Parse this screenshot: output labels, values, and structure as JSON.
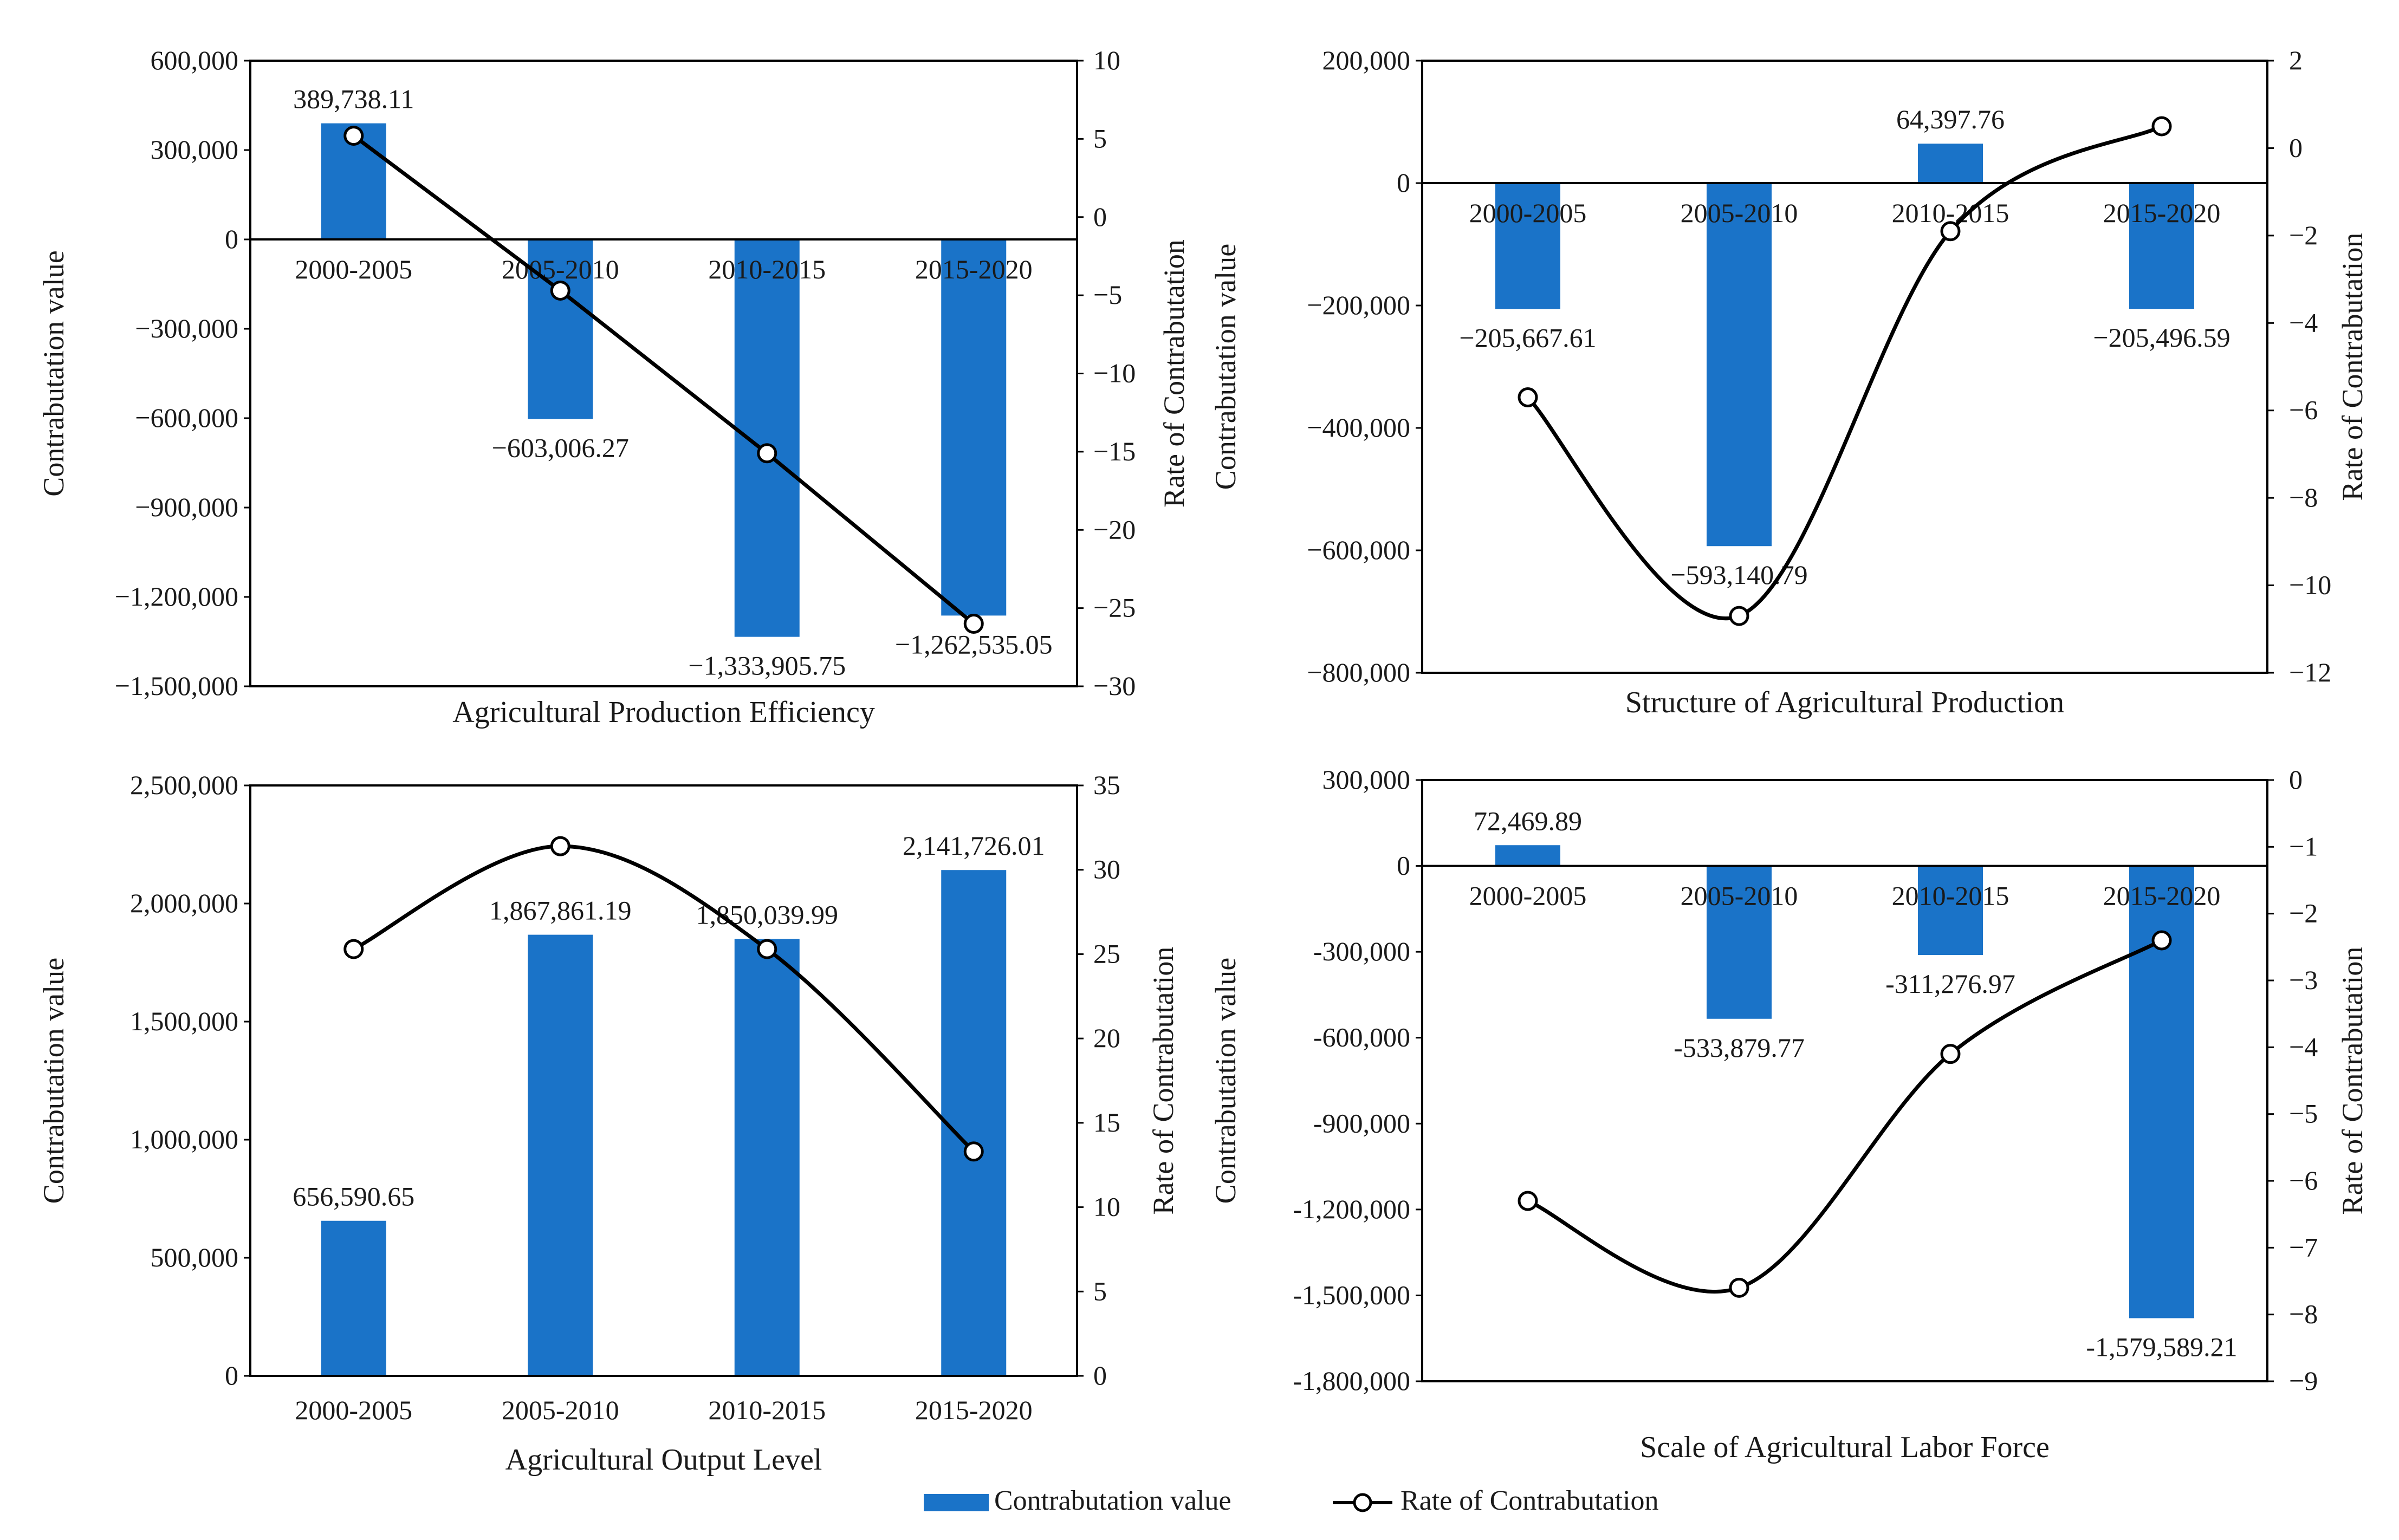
{
  "colors": {
    "bar": "#1a73c8",
    "line": "#000000",
    "frame": "#000000"
  },
  "legend": {
    "bar_label": "Contrabutation value",
    "line_label": "Rate of Contrabutation"
  },
  "chart_data": [
    {
      "type": "bar+line",
      "title": "Agricultural Production Efficiency",
      "categories": [
        "2000-2005",
        "2005-2010",
        "2010-2015",
        "2015-2020"
      ],
      "bar_series": {
        "name": "Contrabutation value",
        "values": [
          389738.11,
          -603006.27,
          -1333905.75,
          -1262535.05
        ]
      },
      "value_labels": [
        "389,738.11",
        "−603,006.27",
        "−1,333,905.75",
        "−1,262,535.05"
      ],
      "line_series": {
        "name": "Rate of Contrabutation",
        "values": [
          5.2,
          -4.7,
          -15.1,
          -26.0
        ]
      },
      "ylabel_left": "Contrabutation  value",
      "ylabel_right": "Rate  of  Contrabutation",
      "ylim_left": [
        -1500000,
        600000
      ],
      "ylim_right": [
        -30,
        10
      ],
      "left_ticks": [
        {
          "value": 600000,
          "label": "600,000"
        },
        {
          "value": 300000,
          "label": "300,000"
        },
        {
          "value": 0,
          "label": "0"
        },
        {
          "value": -300000,
          "label": "−300,000"
        },
        {
          "value": -600000,
          "label": "−600,000"
        },
        {
          "value": -900000,
          "label": "−900,000"
        },
        {
          "value": -1200000,
          "label": "−1,200,000"
        },
        {
          "value": -1500000,
          "label": "−1,500,000"
        }
      ],
      "right_ticks": [
        {
          "value": 10,
          "label": "10"
        },
        {
          "value": 5,
          "label": "5"
        },
        {
          "value": 0,
          "label": "0"
        },
        {
          "value": -5,
          "label": "−5"
        },
        {
          "value": -10,
          "label": "−10"
        },
        {
          "value": -15,
          "label": "−15"
        },
        {
          "value": -20,
          "label": "−20"
        },
        {
          "value": -25,
          "label": "−25"
        },
        {
          "value": -30,
          "label": "−30"
        }
      ],
      "category_labels_at_zero": true,
      "line_style": "straight"
    },
    {
      "type": "bar+line",
      "title": "Structure of Agricultural Production",
      "categories": [
        "2000-2005",
        "2005-2010",
        "2010-2015",
        "2015-2020"
      ],
      "bar_series": {
        "name": "Contrabutation value",
        "values": [
          -205667.61,
          -593140.79,
          64397.76,
          -205496.59
        ]
      },
      "value_labels": [
        "−205,667.61",
        "−593,140.79",
        "64,397.76",
        "−205,496.59"
      ],
      "line_series": {
        "name": "Rate of Contrabutation",
        "values": [
          -5.7,
          -10.7,
          -1.9,
          0.5
        ]
      },
      "ylabel_left": "Contrabutation  value",
      "ylabel_right": "Rate  of  Contrabutation",
      "ylim_left": [
        -800000,
        200000
      ],
      "ylim_right": [
        -12,
        2
      ],
      "left_ticks": [
        {
          "value": 200000,
          "label": "200,000"
        },
        {
          "value": 0,
          "label": "0"
        },
        {
          "value": -200000,
          "label": "−200,000"
        },
        {
          "value": -400000,
          "label": "−400,000"
        },
        {
          "value": -600000,
          "label": "−600,000"
        },
        {
          "value": -800000,
          "label": "−800,000"
        }
      ],
      "right_ticks": [
        {
          "value": 2,
          "label": "2"
        },
        {
          "value": 0,
          "label": "0"
        },
        {
          "value": -2,
          "label": "−2"
        },
        {
          "value": -4,
          "label": "−4"
        },
        {
          "value": -6,
          "label": "−6"
        },
        {
          "value": -8,
          "label": "−8"
        },
        {
          "value": -10,
          "label": "−10"
        },
        {
          "value": -12,
          "label": "−12"
        }
      ],
      "category_labels_at_zero": true,
      "line_style": "smooth"
    },
    {
      "type": "bar+line",
      "title": "Agricultural Output Level",
      "categories": [
        "2000-2005",
        "2005-2010",
        "2010-2015",
        "2015-2020"
      ],
      "bar_series": {
        "name": "Contrabutation value",
        "values": [
          656590.65,
          1867861.19,
          1850039.99,
          2141726.01
        ]
      },
      "value_labels": [
        "656,590.65",
        "1,867,861.19",
        "1,850,039.99",
        "2,141,726.01"
      ],
      "line_series": {
        "name": "Rate of Contrabutation",
        "values": [
          25.3,
          31.4,
          25.3,
          13.3
        ]
      },
      "ylabel_left": "Contrabutation  value",
      "ylabel_right": "Rate  of  Contrabutation",
      "ylim_left": [
        0,
        2500000
      ],
      "ylim_right": [
        0,
        35
      ],
      "left_ticks": [
        {
          "value": 2500000,
          "label": "2,500,000"
        },
        {
          "value": 2000000,
          "label": "2,000,000"
        },
        {
          "value": 1500000,
          "label": "1,500,000"
        },
        {
          "value": 1000000,
          "label": "1,000,000"
        },
        {
          "value": 500000,
          "label": "500,000"
        },
        {
          "value": 0,
          "label": "0"
        }
      ],
      "right_ticks": [
        {
          "value": 35,
          "label": "35"
        },
        {
          "value": 30,
          "label": "30"
        },
        {
          "value": 25,
          "label": "25"
        },
        {
          "value": 20,
          "label": "20"
        },
        {
          "value": 15,
          "label": "15"
        },
        {
          "value": 10,
          "label": "10"
        },
        {
          "value": 5,
          "label": "5"
        },
        {
          "value": 0,
          "label": "0"
        }
      ],
      "category_labels_at_zero": false,
      "line_style": "smooth"
    },
    {
      "type": "bar+line",
      "title": "Scale of Agricultural Labor Force",
      "categories": [
        "2000-2005",
        "2005-2010",
        "2010-2015",
        "2015-2020"
      ],
      "bar_series": {
        "name": "Contrabutation value",
        "values": [
          72469.89,
          -533879.77,
          -311276.97,
          -1579589.21
        ]
      },
      "value_labels": [
        "72,469.89",
        "-533,879.77",
        "-311,276.97",
        "-1,579,589.21"
      ],
      "line_series": {
        "name": "Rate of Contrabutation",
        "values": [
          -6.3,
          -7.6,
          -4.1,
          -2.4
        ]
      },
      "ylabel_left": "Contrabutation  value",
      "ylabel_right": "Rate  of  Contrabutation",
      "ylim_left": [
        -1800000,
        300000
      ],
      "ylim_right": [
        -9,
        0
      ],
      "left_ticks": [
        {
          "value": 300000,
          "label": "300,000"
        },
        {
          "value": 0,
          "label": "0"
        },
        {
          "value": -300000,
          "label": "-300,000"
        },
        {
          "value": -600000,
          "label": "-600,000"
        },
        {
          "value": -900000,
          "label": "-900,000"
        },
        {
          "value": -1200000,
          "label": "-1,200,000"
        },
        {
          "value": -1500000,
          "label": "-1,500,000"
        },
        {
          "value": -1800000,
          "label": "-1,800,000"
        }
      ],
      "right_ticks": [
        {
          "value": 0,
          "label": "0"
        },
        {
          "value": -1,
          "label": "−1"
        },
        {
          "value": -2,
          "label": "−2"
        },
        {
          "value": -3,
          "label": "−3"
        },
        {
          "value": -4,
          "label": "−4"
        },
        {
          "value": -5,
          "label": "−5"
        },
        {
          "value": -6,
          "label": "−6"
        },
        {
          "value": -7,
          "label": "−7"
        },
        {
          "value": -8,
          "label": "−8"
        },
        {
          "value": -9,
          "label": "−9"
        }
      ],
      "category_labels_at_zero": true,
      "line_style": "smooth"
    }
  ]
}
